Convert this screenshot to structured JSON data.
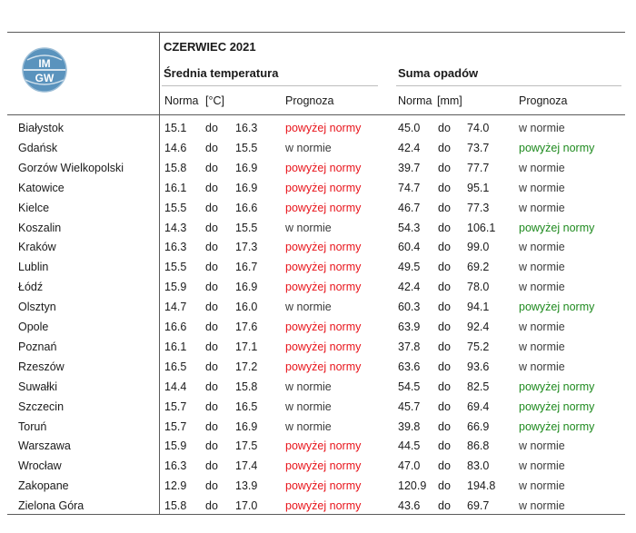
{
  "header": {
    "month": "CZERWIEC 2021",
    "temp_title": "Średnia temperatura",
    "precip_title": "Suma opadów",
    "temp_norm_label": "Norma",
    "temp_unit": "[°C]",
    "temp_forecast_label": "Prognoza",
    "precip_norm_label": "Norma",
    "precip_unit": "[mm]",
    "precip_forecast_label": "Prognoza",
    "logo_text_top": "IM",
    "logo_text_bottom": "GW"
  },
  "colors": {
    "above": "#e8141b",
    "above_precip": "#1e8a1e",
    "normal": "#3a3a3a"
  },
  "rows": [
    {
      "city": "Białystok",
      "t_lo": "15.1",
      "t_to": "do",
      "t_hi": "16.3",
      "t_fc": "powyżej normy",
      "t_fc_class": "red",
      "p_lo": "45.0",
      "p_to": "do",
      "p_hi": "74.0",
      "p_fc": "w normie",
      "p_fc_class": "grey"
    },
    {
      "city": "Gdańsk",
      "t_lo": "14.6",
      "t_to": "do",
      "t_hi": "15.5",
      "t_fc": "w normie",
      "t_fc_class": "grey",
      "p_lo": "42.4",
      "p_to": "do",
      "p_hi": "73.7",
      "p_fc": "powyżej normy",
      "p_fc_class": "green"
    },
    {
      "city": "Gorzów Wielkopolski",
      "t_lo": "15.8",
      "t_to": "do",
      "t_hi": "16.9",
      "t_fc": "powyżej normy",
      "t_fc_class": "red",
      "p_lo": "39.7",
      "p_to": "do",
      "p_hi": "77.7",
      "p_fc": "w normie",
      "p_fc_class": "grey"
    },
    {
      "city": "Katowice",
      "t_lo": "16.1",
      "t_to": "do",
      "t_hi": "16.9",
      "t_fc": "powyżej normy",
      "t_fc_class": "red",
      "p_lo": "74.7",
      "p_to": "do",
      "p_hi": "95.1",
      "p_fc": "w normie",
      "p_fc_class": "grey"
    },
    {
      "city": "Kielce",
      "t_lo": "15.5",
      "t_to": "do",
      "t_hi": "16.6",
      "t_fc": "powyżej normy",
      "t_fc_class": "red",
      "p_lo": "46.7",
      "p_to": "do",
      "p_hi": "77.3",
      "p_fc": "w normie",
      "p_fc_class": "grey"
    },
    {
      "city": "Koszalin",
      "t_lo": "14.3",
      "t_to": "do",
      "t_hi": "15.5",
      "t_fc": "w normie",
      "t_fc_class": "grey",
      "p_lo": "54.3",
      "p_to": "do",
      "p_hi": "106.1",
      "p_fc": "powyżej normy",
      "p_fc_class": "green"
    },
    {
      "city": "Kraków",
      "t_lo": "16.3",
      "t_to": "do",
      "t_hi": "17.3",
      "t_fc": "powyżej normy",
      "t_fc_class": "red",
      "p_lo": "60.4",
      "p_to": "do",
      "p_hi": "99.0",
      "p_fc": "w normie",
      "p_fc_class": "grey"
    },
    {
      "city": "Lublin",
      "t_lo": "15.5",
      "t_to": "do",
      "t_hi": "16.7",
      "t_fc": "powyżej normy",
      "t_fc_class": "red",
      "p_lo": "49.5",
      "p_to": "do",
      "p_hi": "69.2",
      "p_fc": "w normie",
      "p_fc_class": "grey"
    },
    {
      "city": "Łódź",
      "t_lo": "15.9",
      "t_to": "do",
      "t_hi": "16.9",
      "t_fc": "powyżej normy",
      "t_fc_class": "red",
      "p_lo": "42.4",
      "p_to": "do",
      "p_hi": "78.0",
      "p_fc": "w normie",
      "p_fc_class": "grey"
    },
    {
      "city": "Olsztyn",
      "t_lo": "14.7",
      "t_to": "do",
      "t_hi": "16.0",
      "t_fc": "w normie",
      "t_fc_class": "grey",
      "p_lo": "60.3",
      "p_to": "do",
      "p_hi": "94.1",
      "p_fc": "powyżej normy",
      "p_fc_class": "green"
    },
    {
      "city": "Opole",
      "t_lo": "16.6",
      "t_to": "do",
      "t_hi": "17.6",
      "t_fc": "powyżej normy",
      "t_fc_class": "red",
      "p_lo": "63.9",
      "p_to": "do",
      "p_hi": "92.4",
      "p_fc": "w normie",
      "p_fc_class": "grey"
    },
    {
      "city": "Poznań",
      "t_lo": "16.1",
      "t_to": "do",
      "t_hi": "17.1",
      "t_fc": "powyżej normy",
      "t_fc_class": "red",
      "p_lo": "37.8",
      "p_to": "do",
      "p_hi": "75.2",
      "p_fc": "w normie",
      "p_fc_class": "grey"
    },
    {
      "city": "Rzeszów",
      "t_lo": "16.5",
      "t_to": "do",
      "t_hi": "17.2",
      "t_fc": "powyżej normy",
      "t_fc_class": "red",
      "p_lo": "63.6",
      "p_to": "do",
      "p_hi": "93.6",
      "p_fc": "w normie",
      "p_fc_class": "grey"
    },
    {
      "city": "Suwałki",
      "t_lo": "14.4",
      "t_to": "do",
      "t_hi": "15.8",
      "t_fc": "w normie",
      "t_fc_class": "grey",
      "p_lo": "54.5",
      "p_to": "do",
      "p_hi": "82.5",
      "p_fc": "powyżej normy",
      "p_fc_class": "green"
    },
    {
      "city": "Szczecin",
      "t_lo": "15.7",
      "t_to": "do",
      "t_hi": "16.5",
      "t_fc": "w normie",
      "t_fc_class": "grey",
      "p_lo": "45.7",
      "p_to": "do",
      "p_hi": "69.4",
      "p_fc": "powyżej normy",
      "p_fc_class": "green"
    },
    {
      "city": "Toruń",
      "t_lo": "15.7",
      "t_to": "do",
      "t_hi": "16.9",
      "t_fc": "w normie",
      "t_fc_class": "grey",
      "p_lo": "39.8",
      "p_to": "do",
      "p_hi": "66.9",
      "p_fc": "powyżej normy",
      "p_fc_class": "green"
    },
    {
      "city": "Warszawa",
      "t_lo": "15.9",
      "t_to": "do",
      "t_hi": "17.5",
      "t_fc": "powyżej normy",
      "t_fc_class": "red",
      "p_lo": "44.5",
      "p_to": "do",
      "p_hi": "86.8",
      "p_fc": "w normie",
      "p_fc_class": "grey"
    },
    {
      "city": "Wrocław",
      "t_lo": "16.3",
      "t_to": "do",
      "t_hi": "17.4",
      "t_fc": "powyżej normy",
      "t_fc_class": "red",
      "p_lo": "47.0",
      "p_to": "do",
      "p_hi": "83.0",
      "p_fc": "w normie",
      "p_fc_class": "grey"
    },
    {
      "city": "Zakopane",
      "t_lo": "12.9",
      "t_to": "do",
      "t_hi": "13.9",
      "t_fc": "powyżej normy",
      "t_fc_class": "red",
      "p_lo": "120.9",
      "p_to": "do",
      "p_hi": "194.8",
      "p_fc": "w normie",
      "p_fc_class": "grey"
    },
    {
      "city": "Zielona Góra",
      "t_lo": "15.8",
      "t_to": "do",
      "t_hi": "17.0",
      "t_fc": "powyżej normy",
      "t_fc_class": "red",
      "p_lo": "43.6",
      "p_to": "do",
      "p_hi": "69.7",
      "p_fc": "w normie",
      "p_fc_class": "grey"
    }
  ]
}
